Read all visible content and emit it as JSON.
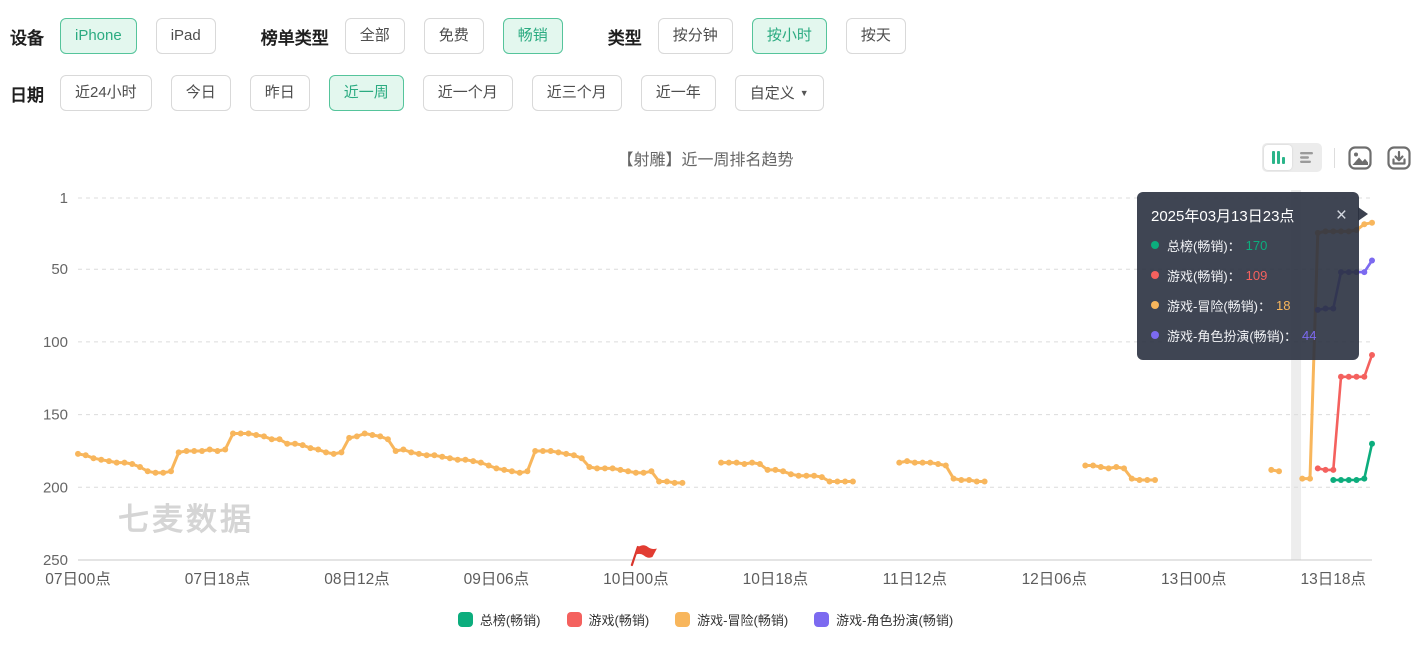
{
  "filter_rows": [
    {
      "groups": [
        {
          "id": "device",
          "label": "设备",
          "options": [
            {
              "label": "iPhone",
              "selected": true
            },
            {
              "label": "iPad"
            }
          ]
        },
        {
          "id": "rank-type",
          "label": "榜单类型",
          "options": [
            {
              "label": "全部"
            },
            {
              "label": "免费"
            },
            {
              "label": "畅销",
              "selected": true
            }
          ]
        },
        {
          "id": "granularity",
          "label": "类型",
          "options": [
            {
              "label": "按分钟"
            },
            {
              "label": "按小时",
              "selected": true
            },
            {
              "label": "按天"
            }
          ]
        }
      ]
    },
    {
      "groups": [
        {
          "id": "date",
          "label": "日期",
          "options": [
            {
              "label": "近24小时"
            },
            {
              "label": "今日"
            },
            {
              "label": "昨日"
            },
            {
              "label": "近一周",
              "selected": true
            },
            {
              "label": "近一个月"
            },
            {
              "label": "近三个月"
            },
            {
              "label": "近一年"
            },
            {
              "label": "自定义",
              "caret": true
            }
          ]
        }
      ]
    }
  ],
  "chart": {
    "title": "【射雕】近一周排名趋势",
    "watermark": "七麦数据",
    "toolbar": {
      "views": [
        {
          "name": "chart-view",
          "active": true
        },
        {
          "name": "table-view",
          "active": false
        }
      ],
      "actions": [
        {
          "name": "save-image"
        },
        {
          "name": "download"
        }
      ]
    }
  },
  "tooltip": {
    "title": "2025年03月13日23点",
    "close_icon": "×",
    "colon": "：",
    "items": [
      {
        "name": "总榜(畅销)",
        "value": "170",
        "color": "#0cad7d"
      },
      {
        "name": "游戏(畅销)",
        "value": "109",
        "color": "#f4615e"
      },
      {
        "name": "游戏-冒险(畅销)",
        "value": "18",
        "color": "#f8b65c"
      },
      {
        "name": "游戏-角色扮演(畅销)",
        "value": "44",
        "color": "#7c6af0"
      }
    ]
  },
  "chart_data": {
    "type": "line",
    "title": "【射雕】近一周排名趋势",
    "y_axis": {
      "name": "rank",
      "inverted": true,
      "ticks": [
        1,
        50,
        100,
        150,
        200,
        250
      ],
      "range": [
        1,
        250
      ],
      "grid": "dashed"
    },
    "x_axis": {
      "unit": "hours since 07日00点",
      "range_hours": [
        0,
        167
      ],
      "ticks": [
        {
          "hour": 0,
          "label": "07日00点"
        },
        {
          "hour": 18,
          "label": "07日18点"
        },
        {
          "hour": 36,
          "label": "08日12点"
        },
        {
          "hour": 54,
          "label": "09日06点"
        },
        {
          "hour": 72,
          "label": "10日00点"
        },
        {
          "hour": 90,
          "label": "10日18点"
        },
        {
          "hour": 108,
          "label": "11日12点"
        },
        {
          "hour": 126,
          "label": "12日06点"
        },
        {
          "hour": 144,
          "label": "13日00点"
        },
        {
          "hour": 162,
          "label": "13日18点"
        }
      ]
    },
    "legend_position": "bottom",
    "hover_band_hour": 157.2,
    "flag_marker_hour": 72,
    "series": [
      {
        "name": "总榜(畅销)",
        "color": "#0cad7d",
        "width": 2.6,
        "segments": [
          [
            [
              162,
              195
            ],
            [
              163,
              195
            ],
            [
              164,
              195
            ],
            [
              165,
              195
            ],
            [
              166,
              194
            ],
            [
              167,
              170
            ]
          ]
        ]
      },
      {
        "name": "游戏(畅销)",
        "color": "#f4615e",
        "width": 2.6,
        "segments": [
          [
            [
              160,
              187
            ],
            [
              161,
              188
            ],
            [
              162,
              188
            ],
            [
              163,
              124
            ],
            [
              164,
              124
            ],
            [
              165,
              124
            ],
            [
              166,
              124
            ],
            [
              167,
              109
            ]
          ]
        ]
      },
      {
        "name": "游戏-冒险(畅销)",
        "color": "#f8b65c",
        "width": 3,
        "segments": [
          [
            [
              0,
              177
            ],
            [
              1,
              178
            ],
            [
              2,
              180
            ],
            [
              3,
              181
            ],
            [
              4,
              182
            ],
            [
              5,
              183
            ],
            [
              6,
              183
            ],
            [
              7,
              184
            ],
            [
              8,
              186
            ],
            [
              9,
              189
            ],
            [
              10,
              190
            ],
            [
              11,
              190
            ],
            [
              12,
              189
            ],
            [
              13,
              176
            ],
            [
              14,
              175
            ],
            [
              15,
              175
            ],
            [
              16,
              175
            ],
            [
              17,
              174
            ],
            [
              18,
              175
            ],
            [
              19,
              174
            ],
            [
              20,
              163
            ],
            [
              21,
              163
            ],
            [
              22,
              163
            ],
            [
              23,
              164
            ],
            [
              24,
              165
            ],
            [
              25,
              167
            ],
            [
              26,
              167
            ],
            [
              27,
              170
            ],
            [
              28,
              170
            ],
            [
              29,
              171
            ],
            [
              30,
              173
            ],
            [
              31,
              174
            ],
            [
              32,
              176
            ],
            [
              33,
              177
            ],
            [
              34,
              176
            ],
            [
              35,
              166
            ],
            [
              36,
              165
            ],
            [
              37,
              163
            ],
            [
              38,
              164
            ],
            [
              39,
              165
            ],
            [
              40,
              167
            ],
            [
              41,
              175
            ],
            [
              42,
              174
            ],
            [
              43,
              176
            ],
            [
              44,
              177
            ],
            [
              45,
              178
            ],
            [
              46,
              178
            ],
            [
              47,
              179
            ],
            [
              48,
              180
            ],
            [
              49,
              181
            ],
            [
              50,
              181
            ],
            [
              51,
              182
            ],
            [
              52,
              183
            ],
            [
              53,
              185
            ],
            [
              54,
              187
            ],
            [
              55,
              188
            ],
            [
              56,
              189
            ],
            [
              57,
              190
            ],
            [
              58,
              189
            ],
            [
              59,
              175
            ],
            [
              60,
              175
            ],
            [
              61,
              175
            ],
            [
              62,
              176
            ],
            [
              63,
              177
            ],
            [
              64,
              178
            ],
            [
              65,
              180
            ],
            [
              66,
              186
            ],
            [
              67,
              187
            ],
            [
              68,
              187
            ],
            [
              69,
              187
            ],
            [
              70,
              188
            ],
            [
              71,
              189
            ],
            [
              72,
              190
            ],
            [
              73,
              190
            ],
            [
              74,
              189
            ],
            [
              75,
              196
            ],
            [
              76,
              196
            ],
            [
              77,
              197
            ],
            [
              78,
              197
            ]
          ],
          [
            [
              83,
              183
            ],
            [
              84,
              183
            ],
            [
              85,
              183
            ],
            [
              86,
              184
            ],
            [
              87,
              183
            ],
            [
              88,
              184
            ],
            [
              89,
              188
            ],
            [
              90,
              188
            ],
            [
              91,
              189
            ],
            [
              92,
              191
            ],
            [
              93,
              192
            ],
            [
              94,
              192
            ],
            [
              95,
              192
            ],
            [
              96,
              193
            ],
            [
              97,
              196
            ],
            [
              98,
              196
            ],
            [
              99,
              196
            ],
            [
              100,
              196
            ]
          ],
          [
            [
              106,
              183
            ],
            [
              107,
              182
            ],
            [
              108,
              183
            ],
            [
              109,
              183
            ],
            [
              110,
              183
            ],
            [
              111,
              184
            ],
            [
              112,
              185
            ],
            [
              113,
              194
            ],
            [
              114,
              195
            ],
            [
              115,
              195
            ],
            [
              116,
              196
            ],
            [
              117,
              196
            ]
          ],
          [
            [
              130,
              185
            ],
            [
              131,
              185
            ],
            [
              132,
              186
            ],
            [
              133,
              187
            ],
            [
              134,
              186
            ],
            [
              135,
              187
            ],
            [
              136,
              194
            ],
            [
              137,
              195
            ],
            [
              138,
              195
            ],
            [
              139,
              195
            ]
          ],
          [
            [
              154,
              188
            ],
            [
              155,
              189
            ]
          ],
          [
            [
              158,
              194
            ],
            [
              159,
              194
            ],
            [
              160,
              25
            ],
            [
              161,
              24
            ],
            [
              162,
              24
            ],
            [
              163,
              24
            ],
            [
              164,
              24
            ],
            [
              165,
              23
            ],
            [
              166,
              19
            ],
            [
              167,
              18
            ]
          ]
        ]
      },
      {
        "name": "游戏-角色扮演(畅销)",
        "color": "#7c6af0",
        "width": 2.6,
        "segments": [
          [
            [
              160,
              78
            ],
            [
              161,
              77
            ],
            [
              162,
              77
            ],
            [
              163,
              52
            ],
            [
              164,
              52
            ],
            [
              165,
              52
            ],
            [
              166,
              52
            ],
            [
              167,
              44
            ]
          ]
        ]
      }
    ]
  }
}
